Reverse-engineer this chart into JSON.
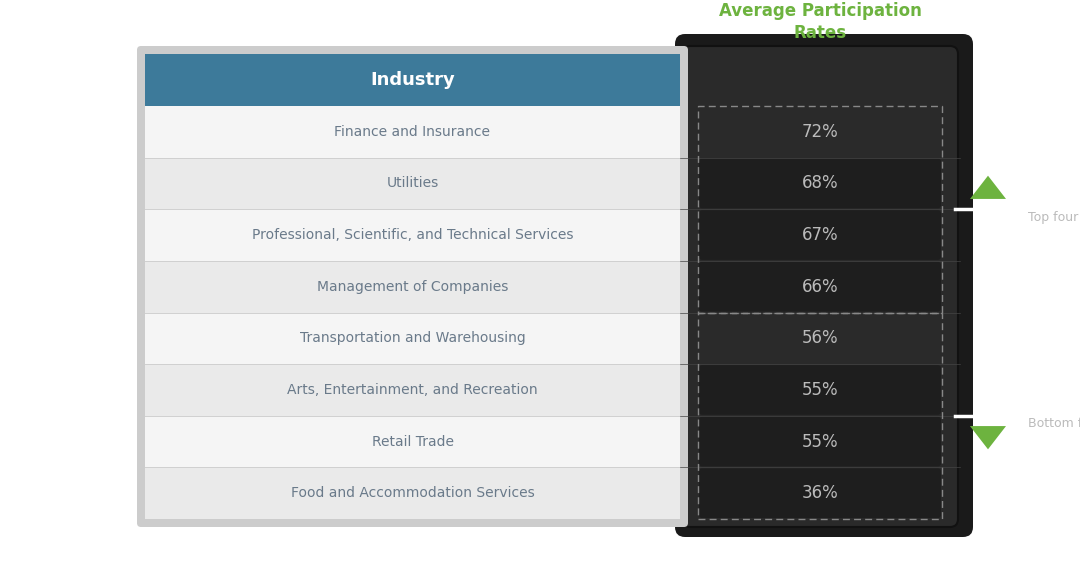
{
  "industries": [
    "Finance and Insurance",
    "Utilities",
    "Professional, Scientific, and Technical Services",
    "Management of Companies",
    "Transportation and Warehousing",
    "Arts, Entertainment, and Recreation",
    "Retail Trade",
    "Food and Accommodation Services"
  ],
  "rates": [
    "72%",
    "68%",
    "67%",
    "66%",
    "56%",
    "55%",
    "55%",
    "36%"
  ],
  "header": "Industry",
  "col2_header": "Average Participation\nRates",
  "top_four_label": "Top four",
  "bottom_four_label": "Bottom four",
  "header_bg": "#3d7a9a",
  "header_text": "#ffffff",
  "col2_header_color": "#6db33f",
  "industry_text_color": "#6a7a8a",
  "rate_text_color": "#bbbbbb",
  "highlight_bg": "#1e1e1e",
  "main_bg": "#ffffff",
  "device_bg": "#2a2a2a",
  "device_shadow": "#1a1a1a",
  "dashed_border": "#888888",
  "separator_line": "#ffffff",
  "arrow_color": "#6db33f",
  "label_color": "#bbbbbb",
  "table_bg": "#f0f0f0",
  "row_even": "#f5f5f5",
  "row_odd": "#eaeaea",
  "row_divider": "#d0d0d0",
  "figsize": [
    10.8,
    5.64
  ],
  "dpi": 100
}
